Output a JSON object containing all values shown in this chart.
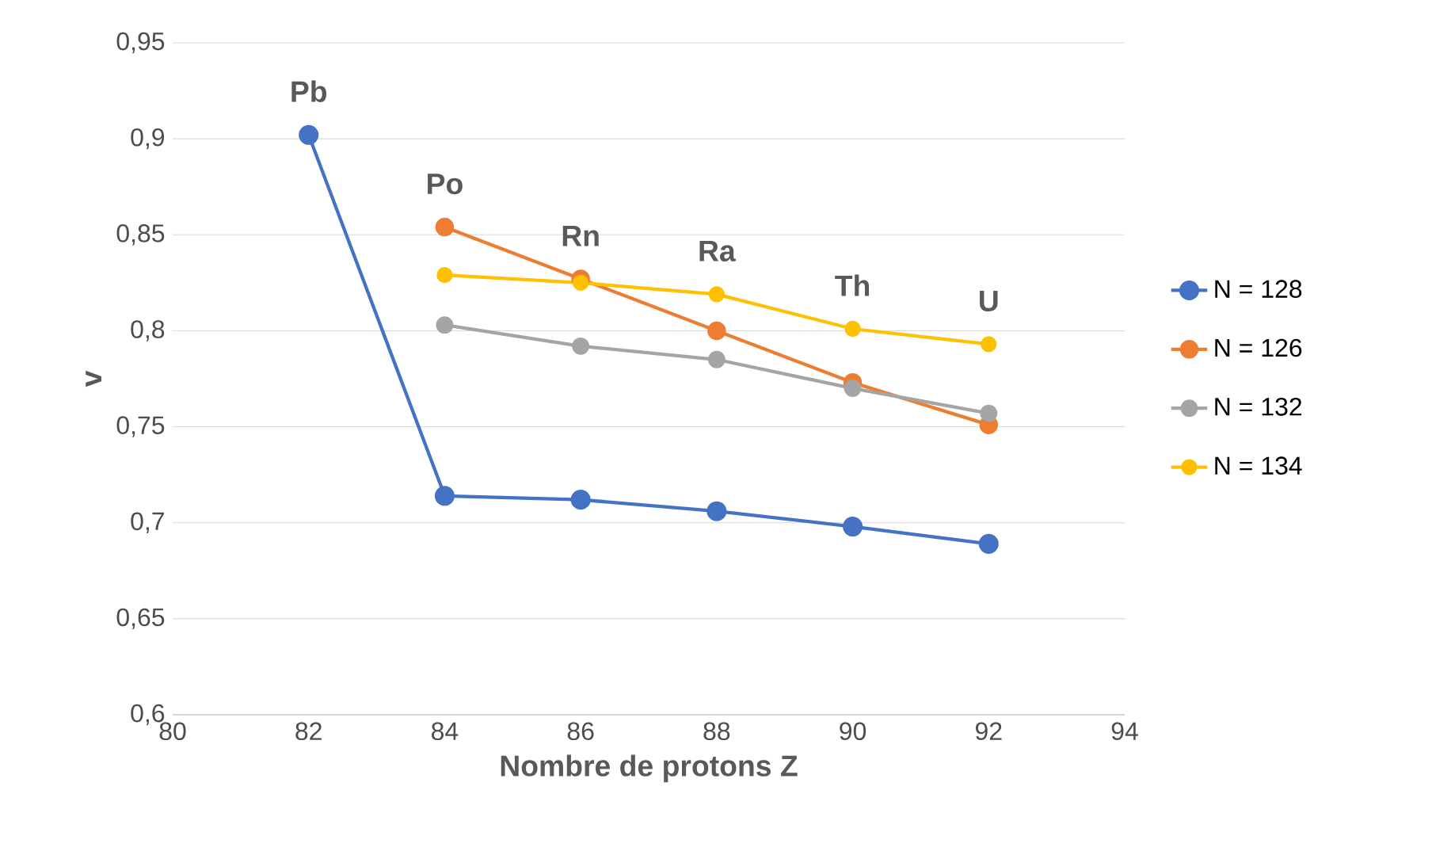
{
  "chart_data": {
    "type": "line",
    "xlabel": "Nombre de protons Z",
    "ylabel": "v",
    "xlim": [
      80,
      94
    ],
    "xticks": [
      80,
      82,
      84,
      86,
      88,
      90,
      92,
      94
    ],
    "ylim": [
      0.6,
      0.95
    ],
    "yticks": [
      {
        "value": 0.6,
        "label": "0,6"
      },
      {
        "value": 0.65,
        "label": "0,65"
      },
      {
        "value": 0.7,
        "label": "0,7"
      },
      {
        "value": 0.75,
        "label": "0,75"
      },
      {
        "value": 0.8,
        "label": "0,8"
      },
      {
        "value": 0.85,
        "label": "0,85"
      },
      {
        "value": 0.9,
        "label": "0,9"
      },
      {
        "value": 0.95,
        "label": "0,95"
      }
    ],
    "grid": "y",
    "legend": "right",
    "marker": "circle",
    "line_style": "solid",
    "series": [
      {
        "name": "N = 128",
        "color": "#4472c4",
        "x": [
          82,
          84,
          86,
          88,
          90,
          92
        ],
        "values": [
          0.902,
          0.714,
          0.712,
          0.706,
          0.698,
          0.689
        ]
      },
      {
        "name": "N = 126",
        "color": "#ed7d31",
        "x": [
          84,
          86,
          88,
          90,
          92
        ],
        "values": [
          0.854,
          0.827,
          0.8,
          0.773,
          0.751
        ]
      },
      {
        "name": "N = 132",
        "color": "#a5a5a5",
        "x": [
          84,
          86,
          88,
          90,
          92
        ],
        "values": [
          0.803,
          0.792,
          0.785,
          0.77,
          0.757
        ]
      },
      {
        "name": "N = 134",
        "color": "#ffc000",
        "x": [
          84,
          86,
          88,
          90,
          92
        ],
        "values": [
          0.829,
          0.825,
          0.819,
          0.801,
          0.793
        ]
      }
    ],
    "annotations": [
      "Pb",
      "Po",
      "Rn",
      "Ra",
      "Th",
      "U"
    ]
  }
}
